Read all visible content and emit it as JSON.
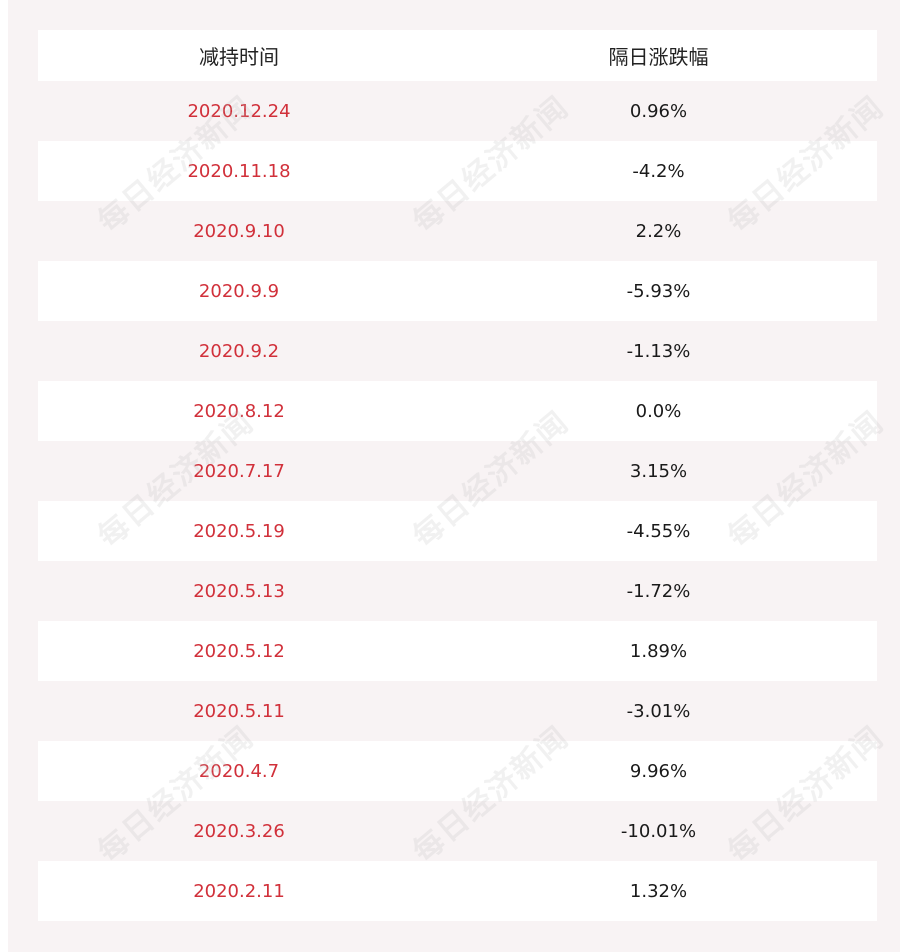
{
  "table": {
    "headers": [
      "减持时间",
      "隔日涨跌幅"
    ],
    "rows": [
      {
        "date": "2020.12.24",
        "change": "0.96%"
      },
      {
        "date": "2020.11.18",
        "change": "-4.2%"
      },
      {
        "date": "2020.9.10",
        "change": "2.2%"
      },
      {
        "date": "2020.9.9",
        "change": "-5.93%"
      },
      {
        "date": "2020.9.2",
        "change": "-1.13%"
      },
      {
        "date": "2020.8.12",
        "change": "0.0%"
      },
      {
        "date": "2020.7.17",
        "change": "3.15%"
      },
      {
        "date": "2020.5.19",
        "change": "-4.55%"
      },
      {
        "date": "2020.5.13",
        "change": "-1.72%"
      },
      {
        "date": "2020.5.12",
        "change": "1.89%"
      },
      {
        "date": "2020.5.11",
        "change": "-3.01%"
      },
      {
        "date": "2020.4.7",
        "change": "9.96%"
      },
      {
        "date": "2020.3.26",
        "change": "-10.01%"
      },
      {
        "date": "2020.2.11",
        "change": "1.32%"
      }
    ]
  },
  "watermark": {
    "text": "每日经济新闻"
  },
  "colors": {
    "date_text": "#d1303a",
    "value_text": "#1a1a1a",
    "header_text": "#222222",
    "stripe": "#f8f3f4",
    "row_white": "#ffffff"
  }
}
